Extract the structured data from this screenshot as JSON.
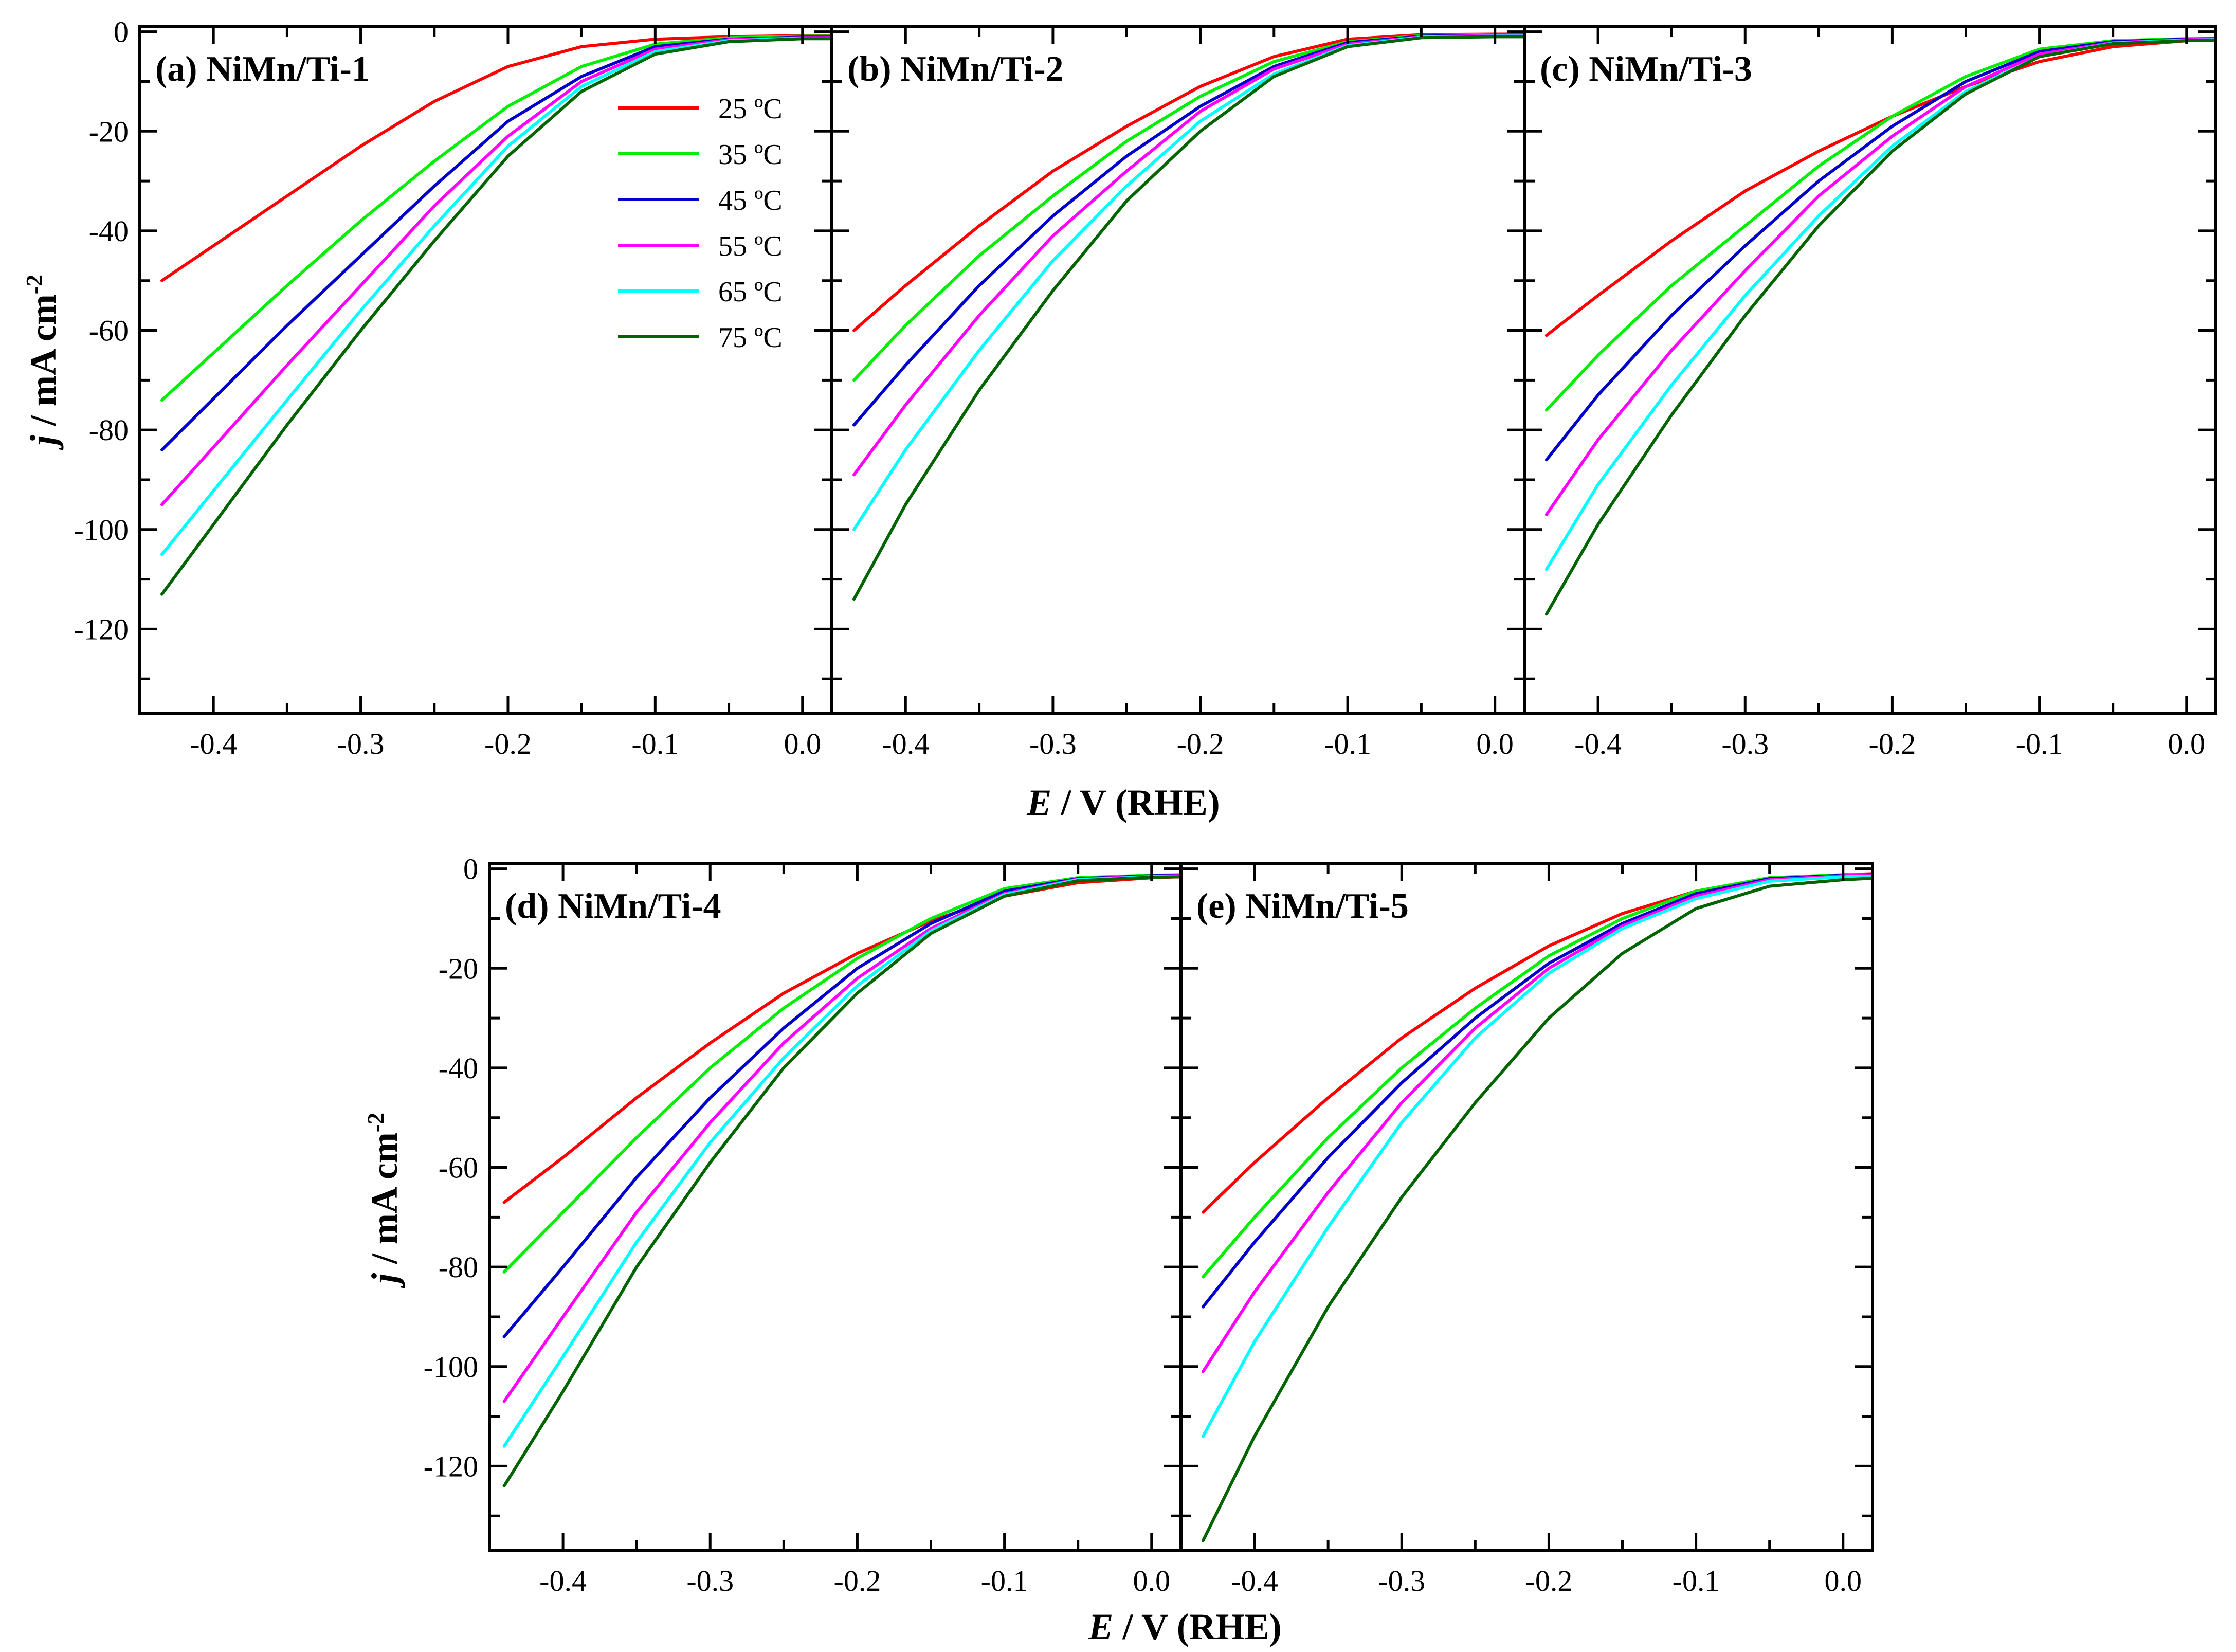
{
  "chart_data": {
    "type": "line",
    "x_axis_title": {
      "prefix": "E",
      "rest": " / V (RHE)"
    },
    "y_axis_title": {
      "prefix": "j",
      "rest": " / mA cm",
      "sup": "-2"
    },
    "x_ticks": [
      -0.4,
      -0.3,
      -0.2,
      -0.1,
      0.0
    ],
    "x_tick_labels": [
      "-0.4",
      "-0.3",
      "-0.2",
      "-0.1",
      "0.0"
    ],
    "y_ticks": [
      0,
      -20,
      -40,
      -60,
      -80,
      -100,
      -120
    ],
    "y_tick_labels": [
      "0",
      "-20",
      "-40",
      "-60",
      "-80",
      "-100",
      "-120"
    ],
    "xlim": [
      -0.45,
      0.02
    ],
    "ylim": [
      -137,
      1
    ],
    "legend": [
      {
        "label": "25 ºC",
        "color": "#ff0000"
      },
      {
        "label": "35 ºC",
        "color": "#00ee00"
      },
      {
        "label": "45 ºC",
        "color": "#0000cc"
      },
      {
        "label": "55 ºC",
        "color": "#ff00ff"
      },
      {
        "label": "65 ºC",
        "color": "#00ffff"
      },
      {
        "label": "75 ºC",
        "color": "#006400"
      }
    ],
    "panels": [
      {
        "id": "a",
        "title": "(a) NiMn/Ti-1",
        "x_start": -0.435,
        "series": [
          {
            "name": "25 ºC",
            "x": [
              -0.435,
              -0.35,
              -0.3,
              -0.25,
              -0.2,
              -0.15,
              -0.1,
              -0.05,
              0.0,
              0.02
            ],
            "y": [
              -50,
              -33,
              -23,
              -14,
              -7,
              -3,
              -1.5,
              -1,
              -0.8,
              -0.8
            ]
          },
          {
            "name": "35 ºC",
            "x": [
              -0.435,
              -0.35,
              -0.3,
              -0.25,
              -0.2,
              -0.15,
              -0.1,
              -0.05,
              0.0,
              0.02
            ],
            "y": [
              -74,
              -51,
              -38,
              -26,
              -15,
              -7,
              -2.5,
              -1.2,
              -0.9,
              -0.9
            ]
          },
          {
            "name": "45 ºC",
            "x": [
              -0.435,
              -0.35,
              -0.3,
              -0.25,
              -0.2,
              -0.15,
              -0.1,
              -0.05,
              0.0,
              0.02
            ],
            "y": [
              -84,
              -59,
              -45,
              -31,
              -18,
              -9,
              -3,
              -1.5,
              -1.1,
              -1.1
            ]
          },
          {
            "name": "55 ºC",
            "x": [
              -0.435,
              -0.35,
              -0.3,
              -0.25,
              -0.2,
              -0.15,
              -0.1,
              -0.05,
              0.0,
              0.02
            ],
            "y": [
              -95,
              -67,
              -51,
              -35,
              -21,
              -10,
              -3.5,
              -1.6,
              -1.2,
              -1.2
            ]
          },
          {
            "name": "65 ºC",
            "x": [
              -0.435,
              -0.35,
              -0.3,
              -0.25,
              -0.2,
              -0.15,
              -0.1,
              -0.05,
              0.0,
              0.02
            ],
            "y": [
              -105,
              -74,
              -56,
              -39,
              -23,
              -11,
              -4,
              -1.8,
              -1.3,
              -1.3
            ]
          },
          {
            "name": "75 ºC",
            "x": [
              -0.435,
              -0.35,
              -0.3,
              -0.25,
              -0.2,
              -0.15,
              -0.1,
              -0.05,
              0.0,
              0.02
            ],
            "y": [
              -113,
              -79,
              -60,
              -42,
              -25,
              -12,
              -4.5,
              -2,
              -1.4,
              -1.4
            ]
          }
        ]
      },
      {
        "id": "b",
        "title": "(b) NiMn/Ti-2",
        "x_start": -0.435,
        "series": [
          {
            "name": "25 ºC",
            "x": [
              -0.435,
              -0.4,
              -0.35,
              -0.3,
              -0.25,
              -0.2,
              -0.15,
              -0.1,
              -0.05,
              0.0,
              0.02
            ],
            "y": [
              -60,
              -51,
              -39,
              -28,
              -19,
              -11,
              -5,
              -1.5,
              -0.6,
              -0.5,
              -0.5
            ]
          },
          {
            "name": "35 ºC",
            "x": [
              -0.435,
              -0.4,
              -0.35,
              -0.3,
              -0.25,
              -0.2,
              -0.15,
              -0.1,
              -0.05,
              0.0,
              0.02
            ],
            "y": [
              -70,
              -59,
              -45,
              -33,
              -22,
              -13,
              -6,
              -2,
              -0.8,
              -0.6,
              -0.6
            ]
          },
          {
            "name": "45 ºC",
            "x": [
              -0.435,
              -0.4,
              -0.35,
              -0.3,
              -0.25,
              -0.2,
              -0.15,
              -0.1,
              -0.05,
              0.0,
              0.02
            ],
            "y": [
              -79,
              -67,
              -51,
              -37,
              -25,
              -15,
              -7,
              -2.2,
              -0.9,
              -0.7,
              -0.7
            ]
          },
          {
            "name": "55 ºC",
            "x": [
              -0.435,
              -0.4,
              -0.35,
              -0.3,
              -0.25,
              -0.2,
              -0.15,
              -0.1,
              -0.05,
              0.0,
              0.02
            ],
            "y": [
              -89,
              -75,
              -57,
              -41,
              -28,
              -16,
              -7.5,
              -2.5,
              -1,
              -0.8,
              -0.8
            ]
          },
          {
            "name": "65 ºC",
            "x": [
              -0.435,
              -0.4,
              -0.35,
              -0.3,
              -0.25,
              -0.2,
              -0.15,
              -0.1,
              -0.05,
              0.0,
              0.02
            ],
            "y": [
              -100,
              -84,
              -64,
              -46,
              -31,
              -18,
              -8.5,
              -2.8,
              -1.1,
              -0.9,
              -0.9
            ]
          },
          {
            "name": "75 ºC",
            "x": [
              -0.435,
              -0.4,
              -0.35,
              -0.3,
              -0.25,
              -0.2,
              -0.15,
              -0.1,
              -0.05,
              0.0,
              0.02
            ],
            "y": [
              -114,
              -95,
              -72,
              -52,
              -34,
              -20,
              -9,
              -3,
              -1.2,
              -1,
              -1
            ]
          }
        ]
      },
      {
        "id": "c",
        "title": "(c) NiMn/Ti-3",
        "x_start": -0.435,
        "series": [
          {
            "name": "25 ºC",
            "x": [
              -0.435,
              -0.4,
              -0.35,
              -0.3,
              -0.25,
              -0.2,
              -0.15,
              -0.1,
              -0.05,
              0.0,
              0.02
            ],
            "y": [
              -61,
              -53,
              -42,
              -32,
              -24,
              -17,
              -11,
              -6,
              -3,
              -1.8,
              -1.6
            ]
          },
          {
            "name": "35 ºC",
            "x": [
              -0.435,
              -0.4,
              -0.35,
              -0.3,
              -0.25,
              -0.2,
              -0.15,
              -0.1,
              -0.05,
              0.0,
              0.02
            ],
            "y": [
              -76,
              -65,
              -51,
              -39,
              -27,
              -17,
              -9,
              -3.5,
              -1.8,
              -1.4,
              -1.3
            ]
          },
          {
            "name": "45 ºC",
            "x": [
              -0.435,
              -0.4,
              -0.35,
              -0.3,
              -0.25,
              -0.2,
              -0.15,
              -0.1,
              -0.05,
              0.0,
              0.02
            ],
            "y": [
              -86,
              -73,
              -57,
              -43,
              -30,
              -19,
              -10,
              -4,
              -2,
              -1.5,
              -1.4
            ]
          },
          {
            "name": "55 ºC",
            "x": [
              -0.435,
              -0.4,
              -0.35,
              -0.3,
              -0.25,
              -0.2,
              -0.15,
              -0.1,
              -0.05,
              0.0,
              0.02
            ],
            "y": [
              -97,
              -82,
              -64,
              -48,
              -33,
              -21,
              -11,
              -4.5,
              -2.2,
              -1.6,
              -1.5
            ]
          },
          {
            "name": "65 ºC",
            "x": [
              -0.435,
              -0.4,
              -0.35,
              -0.3,
              -0.25,
              -0.2,
              -0.15,
              -0.1,
              -0.05,
              0.0,
              0.02
            ],
            "y": [
              -108,
              -91,
              -71,
              -53,
              -37,
              -23,
              -12,
              -5,
              -2.3,
              -1.7,
              -1.6
            ]
          },
          {
            "name": "75 ºC",
            "x": [
              -0.435,
              -0.4,
              -0.35,
              -0.3,
              -0.25,
              -0.2,
              -0.15,
              -0.1,
              -0.05,
              0.0,
              0.02
            ],
            "y": [
              -117,
              -99,
              -77,
              -57,
              -39,
              -24,
              -12.5,
              -5,
              -2.4,
              -1.8,
              -1.7
            ]
          }
        ]
      },
      {
        "id": "d",
        "title": "(d) NiMn/Ti-4",
        "x_start": -0.44,
        "series": [
          {
            "name": "25 ºC",
            "x": [
              -0.44,
              -0.4,
              -0.35,
              -0.3,
              -0.25,
              -0.2,
              -0.15,
              -0.1,
              -0.05,
              0.0,
              0.02
            ],
            "y": [
              -67,
              -58,
              -46,
              -35,
              -25,
              -17,
              -10.5,
              -5.5,
              -2.8,
              -1.8,
              -1.6
            ]
          },
          {
            "name": "35 ºC",
            "x": [
              -0.44,
              -0.4,
              -0.35,
              -0.3,
              -0.25,
              -0.2,
              -0.15,
              -0.1,
              -0.05,
              0.0,
              0.02
            ],
            "y": [
              -81,
              -69,
              -54,
              -40,
              -28,
              -18,
              -10,
              -4,
              -1.8,
              -1.3,
              -1.2
            ]
          },
          {
            "name": "45 ºC",
            "x": [
              -0.44,
              -0.4,
              -0.35,
              -0.3,
              -0.25,
              -0.2,
              -0.15,
              -0.1,
              -0.05,
              0.0,
              0.02
            ],
            "y": [
              -94,
              -80,
              -62,
              -46,
              -32,
              -20,
              -11,
              -4.5,
              -2,
              -1.4,
              -1.3
            ]
          },
          {
            "name": "55 ºC",
            "x": [
              -0.44,
              -0.4,
              -0.35,
              -0.3,
              -0.25,
              -0.2,
              -0.15,
              -0.1,
              -0.05,
              0.0,
              0.02
            ],
            "y": [
              -107,
              -90,
              -69,
              -51,
              -35,
              -22,
              -12,
              -5,
              -2.1,
              -1.5,
              -1.4
            ]
          },
          {
            "name": "65 ºC",
            "x": [
              -0.44,
              -0.4,
              -0.35,
              -0.3,
              -0.25,
              -0.2,
              -0.15,
              -0.1,
              -0.05,
              0.0,
              0.02
            ],
            "y": [
              -116,
              -98,
              -75,
              -55,
              -38,
              -23.5,
              -12.5,
              -5.2,
              -2.2,
              -1.6,
              -1.5
            ]
          },
          {
            "name": "75 ºC",
            "x": [
              -0.44,
              -0.4,
              -0.35,
              -0.3,
              -0.25,
              -0.2,
              -0.15,
              -0.1,
              -0.05,
              0.0,
              0.02
            ],
            "y": [
              -124,
              -105,
              -80,
              -59,
              -40,
              -25,
              -13,
              -5.5,
              -2.4,
              -1.7,
              -1.6
            ]
          }
        ]
      },
      {
        "id": "e",
        "title": "(e) NiMn/Ti-5",
        "x_start": -0.435,
        "series": [
          {
            "name": "25 ºC",
            "x": [
              -0.435,
              -0.4,
              -0.35,
              -0.3,
              -0.25,
              -0.2,
              -0.15,
              -0.1,
              -0.05,
              0.0,
              0.02
            ],
            "y": [
              -69,
              -59,
              -46,
              -34,
              -24,
              -15.5,
              -9,
              -4.5,
              -2,
              -1.2,
              -1
            ]
          },
          {
            "name": "35 ºC",
            "x": [
              -0.435,
              -0.4,
              -0.35,
              -0.3,
              -0.25,
              -0.2,
              -0.15,
              -0.1,
              -0.05,
              0.0,
              0.02
            ],
            "y": [
              -82,
              -70,
              -54,
              -40,
              -28,
              -17.5,
              -10,
              -4.5,
              -1.8,
              -1.2,
              -1.1
            ]
          },
          {
            "name": "45 ºC",
            "x": [
              -0.435,
              -0.4,
              -0.35,
              -0.3,
              -0.25,
              -0.2,
              -0.15,
              -0.1,
              -0.05,
              0.0,
              0.02
            ],
            "y": [
              -88,
              -75,
              -58,
              -43,
              -30,
              -19,
              -11,
              -5,
              -2,
              -1.3,
              -1.2
            ]
          },
          {
            "name": "55 ºC",
            "x": [
              -0.435,
              -0.4,
              -0.35,
              -0.3,
              -0.25,
              -0.2,
              -0.15,
              -0.1,
              -0.05,
              0.0,
              0.02
            ],
            "y": [
              -101,
              -85,
              -65,
              -47,
              -32,
              -20,
              -11.5,
              -5.5,
              -2.2,
              -1.4,
              -1.3
            ]
          },
          {
            "name": "65 ºC",
            "x": [
              -0.435,
              -0.4,
              -0.35,
              -0.3,
              -0.25,
              -0.2,
              -0.15,
              -0.1,
              -0.05,
              0.0,
              0.02
            ],
            "y": [
              -114,
              -95,
              -72,
              -51,
              -34,
              -21,
              -12,
              -6,
              -2.5,
              -1.6,
              -1.5
            ]
          },
          {
            "name": "75 ºC",
            "x": [
              -0.435,
              -0.4,
              -0.35,
              -0.3,
              -0.25,
              -0.2,
              -0.15,
              -0.1,
              -0.05,
              0.0,
              0.02
            ],
            "y": [
              -135,
              -114,
              -88,
              -66,
              -47,
              -30,
              -17,
              -8,
              -3.5,
              -2.2,
              -1.9
            ]
          }
        ]
      }
    ]
  }
}
